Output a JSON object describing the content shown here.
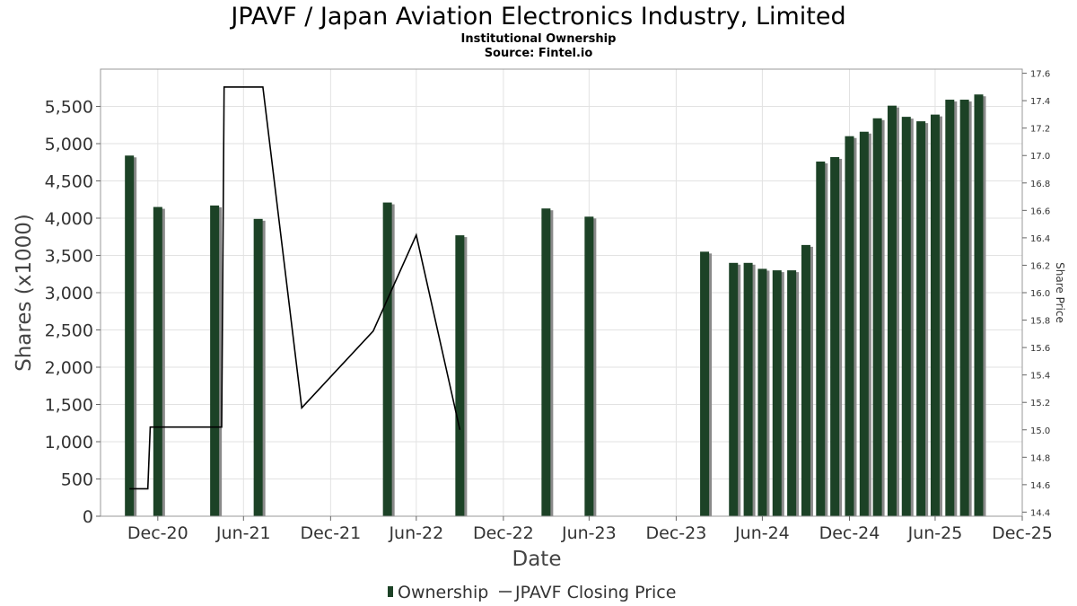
{
  "header": {
    "title": "JPAVF / Japan Aviation Electronics Industry, Limited",
    "subtitle": "Institutional Ownership",
    "source": "Source: Fintel.io"
  },
  "chart_data": {
    "type": "bar",
    "xlabel": "Date",
    "ylabel": "Shares (x1000)",
    "y2label": "Share Price",
    "x_axis": {
      "min": "2020-09-01",
      "max": "2025-12-31",
      "ticks": [
        {
          "date": "2020-12-31",
          "label": "Dec-20"
        },
        {
          "date": "2021-06-30",
          "label": "Jun-21"
        },
        {
          "date": "2021-12-31",
          "label": "Dec-21"
        },
        {
          "date": "2022-06-30",
          "label": "Jun-22"
        },
        {
          "date": "2022-12-31",
          "label": "Dec-22"
        },
        {
          "date": "2023-06-30",
          "label": "Jun-23"
        },
        {
          "date": "2023-12-31",
          "label": "Dec-23"
        },
        {
          "date": "2024-06-30",
          "label": "Jun-24"
        },
        {
          "date": "2024-12-31",
          "label": "Dec-24"
        },
        {
          "date": "2025-06-30",
          "label": "Jun-25"
        },
        {
          "date": "2025-12-31",
          "label": "Dec-25"
        }
      ]
    },
    "y_left": {
      "min": 0,
      "max": 6000,
      "ticks": [
        {
          "value": 0,
          "label": "0"
        },
        {
          "value": 500,
          "label": "500"
        },
        {
          "value": 1000,
          "label": "1,000"
        },
        {
          "value": 1500,
          "label": "1,500"
        },
        {
          "value": 2000,
          "label": "2,000"
        },
        {
          "value": 2500,
          "label": "2,500"
        },
        {
          "value": 3000,
          "label": "3,000"
        },
        {
          "value": 3500,
          "label": "3,500"
        },
        {
          "value": 4000,
          "label": "4,000"
        },
        {
          "value": 4500,
          "label": "4,500"
        },
        {
          "value": 5000,
          "label": "5,000"
        },
        {
          "value": 5500,
          "label": "5,500"
        }
      ]
    },
    "y_right": {
      "min": 14.37,
      "max": 17.63,
      "ticks": [
        {
          "value": 14.4,
          "label": "14.4"
        },
        {
          "value": 14.6,
          "label": "14.6"
        },
        {
          "value": 14.8,
          "label": "14.8"
        },
        {
          "value": 15.0,
          "label": "15.0"
        },
        {
          "value": 15.2,
          "label": "15.2"
        },
        {
          "value": 15.4,
          "label": "15.4"
        },
        {
          "value": 15.6,
          "label": "15.6"
        },
        {
          "value": 15.8,
          "label": "15.8"
        },
        {
          "value": 16.0,
          "label": "16.0"
        },
        {
          "value": 16.2,
          "label": "16.2"
        },
        {
          "value": 16.4,
          "label": "16.4"
        },
        {
          "value": 16.6,
          "label": "16.6"
        },
        {
          "value": 16.8,
          "label": "16.8"
        },
        {
          "value": 17.0,
          "label": "17.0"
        },
        {
          "value": 17.2,
          "label": "17.2"
        },
        {
          "value": 17.4,
          "label": "17.4"
        },
        {
          "value": 17.6,
          "label": "17.6"
        }
      ]
    },
    "grid": true,
    "legend_position": "bottom",
    "series": [
      {
        "name": "Ownership",
        "kind": "bar",
        "color": "#1c4226",
        "points": [
          {
            "x": "2020-11-01",
            "y": 4840
          },
          {
            "x": "2020-12-31",
            "y": 4150
          },
          {
            "x": "2021-04-30",
            "y": 4170
          },
          {
            "x": "2021-07-31",
            "y": 3990
          },
          {
            "x": "2022-04-30",
            "y": 4210
          },
          {
            "x": "2022-09-30",
            "y": 3770
          },
          {
            "x": "2023-03-31",
            "y": 4130
          },
          {
            "x": "2023-06-30",
            "y": 4020
          },
          {
            "x": "2024-02-29",
            "y": 3550
          },
          {
            "x": "2024-04-30",
            "y": 3400
          },
          {
            "x": "2024-05-31",
            "y": 3400
          },
          {
            "x": "2024-06-30",
            "y": 3320
          },
          {
            "x": "2024-07-31",
            "y": 3300
          },
          {
            "x": "2024-08-31",
            "y": 3300
          },
          {
            "x": "2024-09-30",
            "y": 3640
          },
          {
            "x": "2024-10-31",
            "y": 4760
          },
          {
            "x": "2024-11-30",
            "y": 4820
          },
          {
            "x": "2024-12-31",
            "y": 5100
          },
          {
            "x": "2025-01-31",
            "y": 5160
          },
          {
            "x": "2025-02-28",
            "y": 5340
          },
          {
            "x": "2025-03-31",
            "y": 5510
          },
          {
            "x": "2025-04-30",
            "y": 5360
          },
          {
            "x": "2025-05-31",
            "y": 5300
          },
          {
            "x": "2025-06-30",
            "y": 5390
          },
          {
            "x": "2025-07-31",
            "y": 5590
          },
          {
            "x": "2025-08-31",
            "y": 5590
          },
          {
            "x": "2025-09-30",
            "y": 5660
          }
        ]
      },
      {
        "name": "JPAVF Closing Price",
        "kind": "line",
        "color": "#000000",
        "points": [
          {
            "x": "2020-11-01",
            "y": 14.57
          },
          {
            "x": "2020-12-10",
            "y": 14.57
          },
          {
            "x": "2020-12-15",
            "y": 15.02
          },
          {
            "x": "2021-05-15",
            "y": 15.02
          },
          {
            "x": "2021-05-20",
            "y": 17.5
          },
          {
            "x": "2021-08-10",
            "y": 17.5
          },
          {
            "x": "2021-10-31",
            "y": 15.16
          },
          {
            "x": "2022-03-31",
            "y": 15.72
          },
          {
            "x": "2022-06-30",
            "y": 16.42
          },
          {
            "x": "2022-09-30",
            "y": 15.0
          }
        ]
      }
    ]
  }
}
